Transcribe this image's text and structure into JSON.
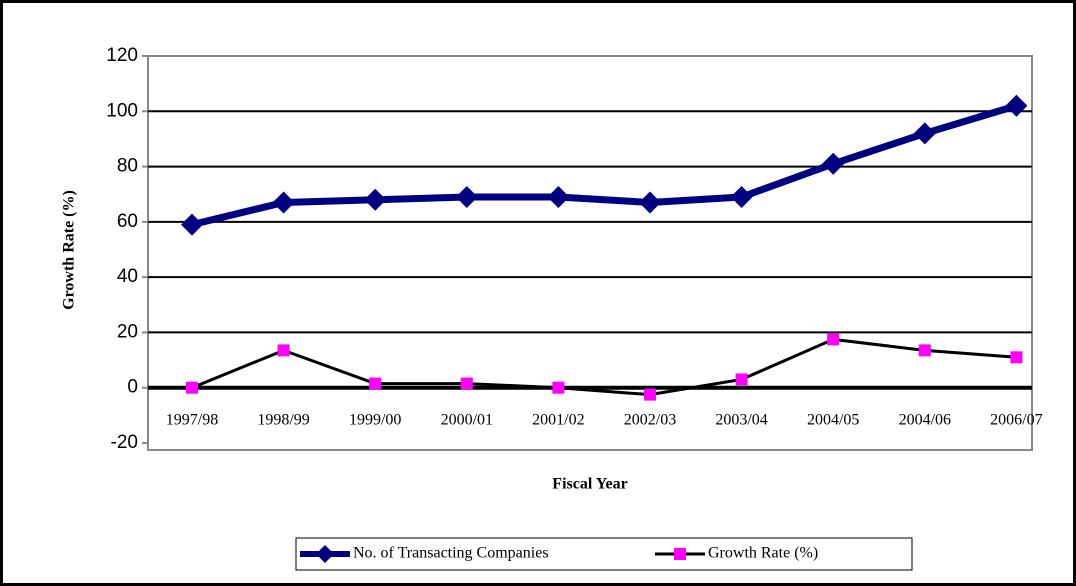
{
  "chart_data": {
    "type": "line",
    "ylabel": "Growth Rate (%)",
    "xlabel": "Fiscal Year",
    "categories": [
      "1997/98",
      "1998/99",
      "1999/00",
      "2000/01",
      "2001/02",
      "2002/03",
      "2003/04",
      "2004/05",
      "2004/06",
      "2006/07"
    ],
    "series": [
      {
        "name": "No. of Transacting Companies",
        "color": "#000080",
        "marker_color": "#000080",
        "values": [
          59,
          67,
          68,
          69,
          69,
          67,
          69,
          81,
          92,
          102
        ]
      },
      {
        "name": "Growth Rate (%)",
        "color": "#000000",
        "marker_color": "#ff00ff",
        "values": [
          0,
          13.5,
          1.5,
          1.5,
          0,
          -2.5,
          3,
          17.5,
          13.5,
          11
        ]
      }
    ],
    "ylim": [
      -20,
      120
    ],
    "yticks": [
      -20,
      0,
      20,
      40,
      60,
      80,
      100,
      120
    ],
    "grid": true,
    "legend": "bottom"
  }
}
